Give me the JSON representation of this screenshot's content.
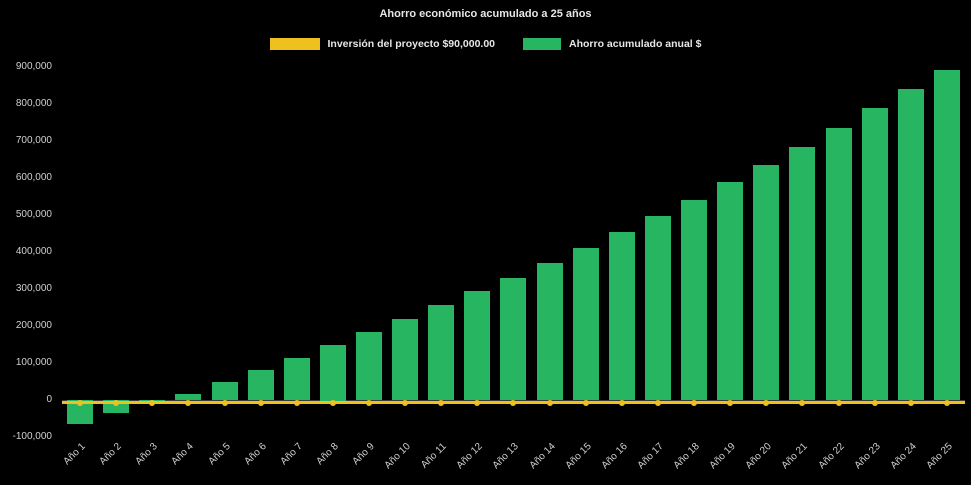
{
  "title": "Ahorro económico acumulado a 25 años",
  "legend": [
    {
      "label": "Inversión del proyecto $90,000.00",
      "color": "#eec11e"
    },
    {
      "label": "Ahorro acumulado anual $",
      "color": "#27b561"
    }
  ],
  "chart_data": {
    "type": "bar",
    "title": "Ahorro económico acumulado a 25 años",
    "categories": [
      "Año 1",
      "Año 2",
      "Año 3",
      "Año 4",
      "Año 5",
      "Año 6",
      "Año 7",
      "Año 8",
      "Año 9",
      "Año 10",
      "Año 11",
      "Año 12",
      "Año 13",
      "Año 14",
      "Año 15",
      "Año 16",
      "Año 17",
      "Año 18",
      "Año 19",
      "Año 20",
      "Año 21",
      "Año 22",
      "Año 23",
      "Año 24",
      "Año 25"
    ],
    "series": [
      {
        "name": "Inversión del proyecto $90,000.00",
        "type": "line",
        "color": "#eec11e",
        "values": [
          -8000,
          -8000,
          -8000,
          -8000,
          -8000,
          -8000,
          -8000,
          -8000,
          -8000,
          -8000,
          -8000,
          -8000,
          -8000,
          -8000,
          -8000,
          -8000,
          -8000,
          -8000,
          -8000,
          -8000,
          -8000,
          -8000,
          -8000,
          -8000,
          -8000
        ]
      },
      {
        "name": "Ahorro acumulado anual $",
        "type": "bar",
        "color": "#27b561",
        "values": [
          -65000,
          -35000,
          -5000,
          15000,
          48000,
          80000,
          113000,
          150000,
          185000,
          220000,
          257000,
          295000,
          330000,
          370000,
          410000,
          455000,
          497000,
          540000,
          588000,
          635000,
          683000,
          735000,
          788000,
          840000,
          893000
        ]
      }
    ],
    "ylim": [
      -100000,
      900000
    ],
    "ytick_interval": 100000,
    "yticks": [
      "900,000",
      "800,000",
      "700,000",
      "600,000",
      "500,000",
      "400,000",
      "300,000",
      "200,000",
      "100,000",
      "0",
      "-100,000"
    ],
    "grid": false,
    "legend_position": "top",
    "background": "#000000"
  }
}
